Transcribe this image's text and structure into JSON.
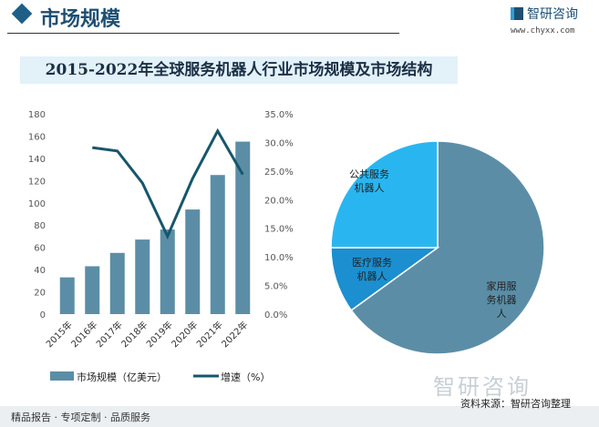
{
  "header": {
    "section_title": "市场规模",
    "logo_text": "智研咨询",
    "url": "www.chyxx.com"
  },
  "footer": {
    "left": "精品报告 · 专项定制 · 品质服务",
    "source": "资料来源：智研咨询整理",
    "watermark": "智研咨询"
  },
  "colors": {
    "bar": "#5b8ea6",
    "line": "#17566b",
    "pie_home": "#5b8ea6",
    "pie_medical": "#1b8fd0",
    "pie_public": "#29b6f0"
  },
  "chart_data": [
    {
      "type": "bar",
      "title": "2015-2022年全球服务机器人行业市场规模及市场结构",
      "categories": [
        "2015年",
        "2016年",
        "2017年",
        "2018年",
        "2019年",
        "2020年",
        "2021年",
        "2022年"
      ],
      "series": [
        {
          "name": "市场规模（亿美元）",
          "type": "bar",
          "axis": "left",
          "values": [
            33,
            43,
            55,
            67,
            76,
            94,
            125,
            155
          ]
        },
        {
          "name": "增速（%）",
          "type": "line",
          "axis": "right",
          "values": [
            null,
            29.1,
            28.5,
            22.9,
            13.6,
            23.7,
            32.0,
            24.4
          ]
        }
      ],
      "ylim": [
        0,
        180
      ],
      "yticks": [
        "0",
        "20",
        "40",
        "60",
        "80",
        "100",
        "120",
        "140",
        "160",
        "180"
      ],
      "y2lim": [
        0,
        35
      ],
      "y2ticks": [
        "0.0%",
        "5.0%",
        "10.0%",
        "15.0%",
        "20.0%",
        "25.0%",
        "30.0%",
        "35.0%"
      ],
      "legend": "bottom"
    },
    {
      "type": "pie",
      "slices": [
        {
          "label": "家用服务机器人",
          "label_lines": [
            "家用服",
            "务机器",
            "人"
          ],
          "value": 65
        },
        {
          "label": "医疗服务机器人",
          "label_lines": [
            "医疗服务",
            "机器人"
          ],
          "value": 10
        },
        {
          "label": "公共服务机器人",
          "label_lines": [
            "公共服务",
            "机器人"
          ],
          "value": 25
        }
      ]
    }
  ]
}
